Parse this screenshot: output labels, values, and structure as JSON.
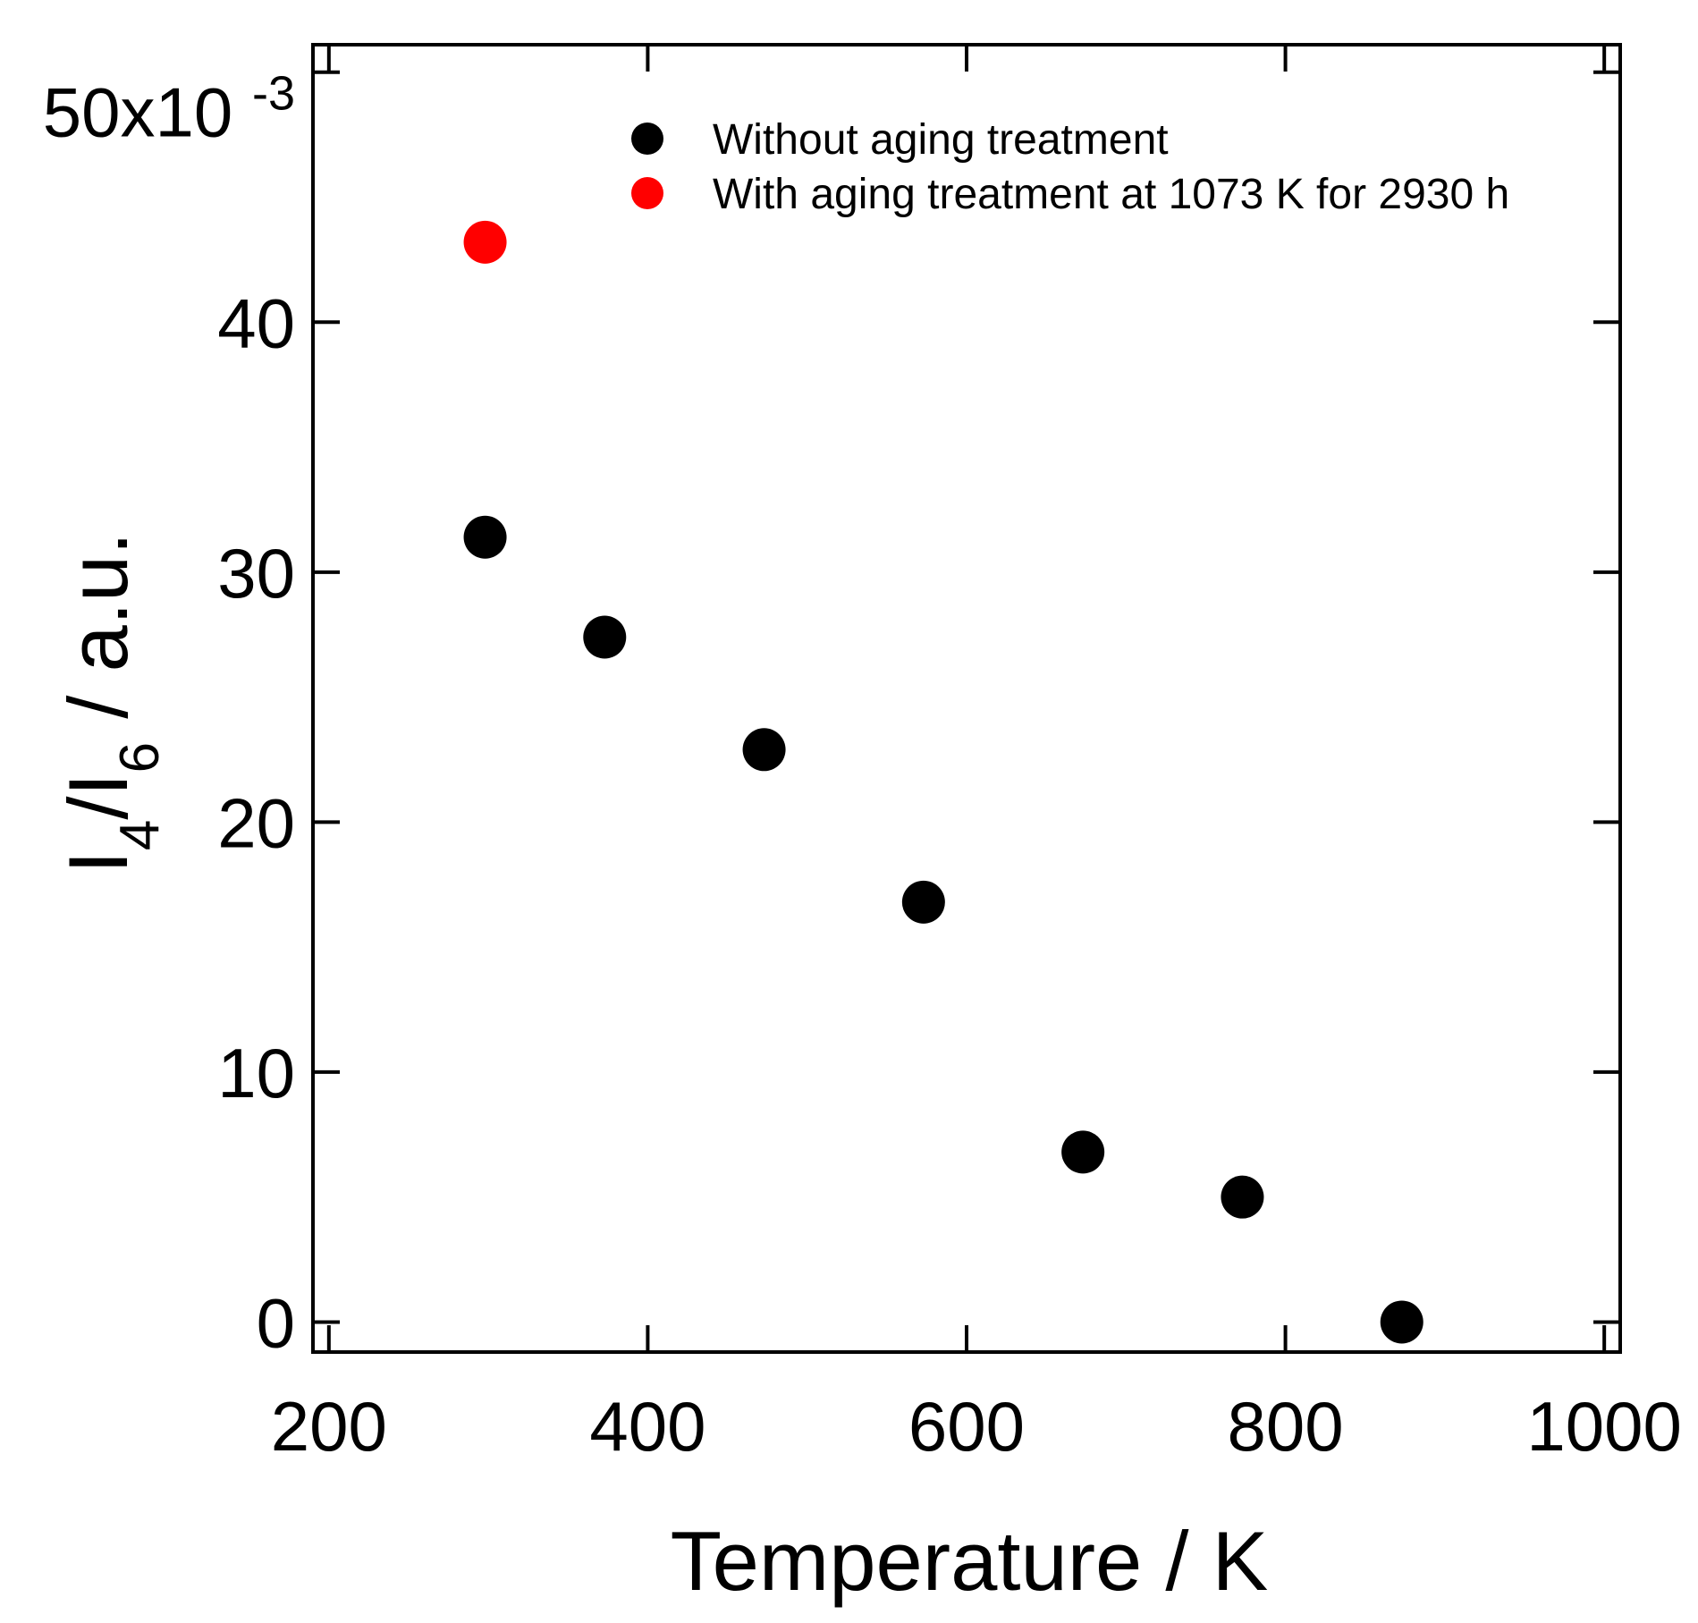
{
  "chart_data": {
    "type": "scatter",
    "title": "",
    "xlabel": "Temperature / K",
    "ylabel": {
      "main": "I",
      "sub1": "4",
      "slash": "/I",
      "sub2": "6",
      "rest": " / a.u."
    },
    "xlim": [
      190,
      1010
    ],
    "ylim": [
      -0.0012,
      0.0511
    ],
    "x_ticks": [
      200,
      400,
      600,
      800,
      1000
    ],
    "x_tick_labels": [
      "200",
      "400",
      "600",
      "800",
      "1000"
    ],
    "y_ticks": [
      0,
      0.01,
      0.02,
      0.03,
      0.04
    ],
    "y_tick_labels": [
      "0",
      "10",
      "20",
      "30",
      "40"
    ],
    "y_top_label": {
      "mantissa": "50x10",
      "exponent": "-3"
    },
    "legend_position": "top-right",
    "series": [
      {
        "name": "Without aging treatment",
        "color": "#000000",
        "x": [
          298,
          373,
          473,
          573,
          673,
          773,
          873
        ],
        "y": [
          0.0314,
          0.0274,
          0.0229,
          0.0168,
          0.0068,
          0.005,
          0.0
        ]
      },
      {
        "name": "With aging treatment at 1073 K for 2930 h",
        "color": "#ff0000",
        "x": [
          298
        ],
        "y": [
          0.0432
        ]
      }
    ]
  }
}
